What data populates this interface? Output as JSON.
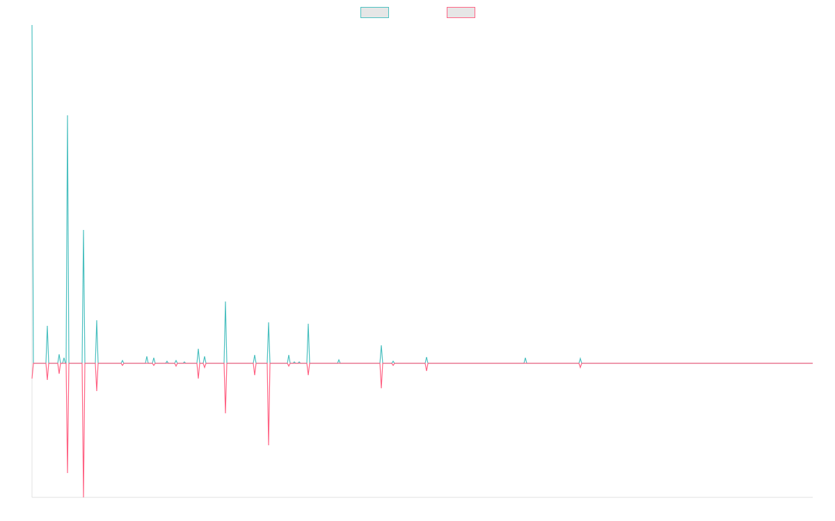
{
  "chart_data": {
    "type": "line",
    "x": [
      0,
      2,
      20,
      22,
      24,
      37,
      39,
      41,
      44,
      46,
      48,
      49,
      51,
      53,
      72,
      74,
      76,
      91,
      93,
      95,
      128,
      130,
      132,
      163,
      165,
      167,
      173,
      175,
      177,
      192,
      194,
      196,
      205,
      207,
      209,
      217,
      219,
      221,
      237,
      239,
      241,
      246,
      248,
      250,
      276,
      278,
      280,
      318,
      320,
      322,
      338,
      340,
      342,
      367,
      369,
      371,
      375,
      377,
      379,
      382,
      384,
      386,
      395,
      397,
      399,
      439,
      441,
      443,
      500,
      502,
      504,
      517,
      519,
      521,
      565,
      567,
      569,
      707,
      709,
      711,
      786,
      788,
      790,
      1122
    ],
    "xlim": [
      0,
      1122
    ],
    "ylim": [
      -193,
      487
    ],
    "legend": "top",
    "series": [
      {
        "color": "#4bc0c0",
        "values": [
          487,
          0,
          0,
          54,
          0,
          0,
          13,
          0,
          0,
          8,
          0,
          0,
          357,
          0,
          0,
          192,
          0,
          0,
          62,
          0,
          0,
          4,
          0,
          0,
          10,
          0,
          0,
          8,
          0,
          0,
          3,
          0,
          0,
          4,
          0,
          0,
          2,
          0,
          0,
          21,
          0,
          0,
          10,
          0,
          0,
          89,
          0,
          0,
          12,
          0,
          0,
          59,
          0,
          0,
          12,
          0,
          0,
          2,
          0,
          0,
          2,
          0,
          0,
          57,
          0,
          0,
          5,
          0,
          0,
          26,
          0,
          0,
          3,
          0,
          0,
          9,
          0,
          0,
          8,
          0,
          0,
          7,
          0,
          0
        ]
      },
      {
        "color": "#ff6384",
        "values": [
          -22,
          0,
          0,
          -24,
          0,
          0,
          -15,
          0,
          0,
          0,
          0,
          0,
          -158,
          0,
          0,
          -193,
          0,
          0,
          -40,
          0,
          0,
          -3,
          0,
          0,
          0,
          0,
          0,
          -3,
          0,
          0,
          0,
          0,
          0,
          -4,
          0,
          0,
          0,
          0,
          0,
          -22,
          0,
          0,
          -6,
          0,
          0,
          -72,
          0,
          0,
          -17,
          0,
          0,
          -118,
          0,
          0,
          -4,
          0,
          0,
          0,
          0,
          0,
          0,
          0,
          0,
          -17,
          0,
          0,
          0,
          0,
          0,
          -36,
          0,
          0,
          -3,
          0,
          0,
          -11,
          0,
          0,
          0,
          0,
          0,
          -6,
          0,
          0
        ]
      }
    ]
  }
}
